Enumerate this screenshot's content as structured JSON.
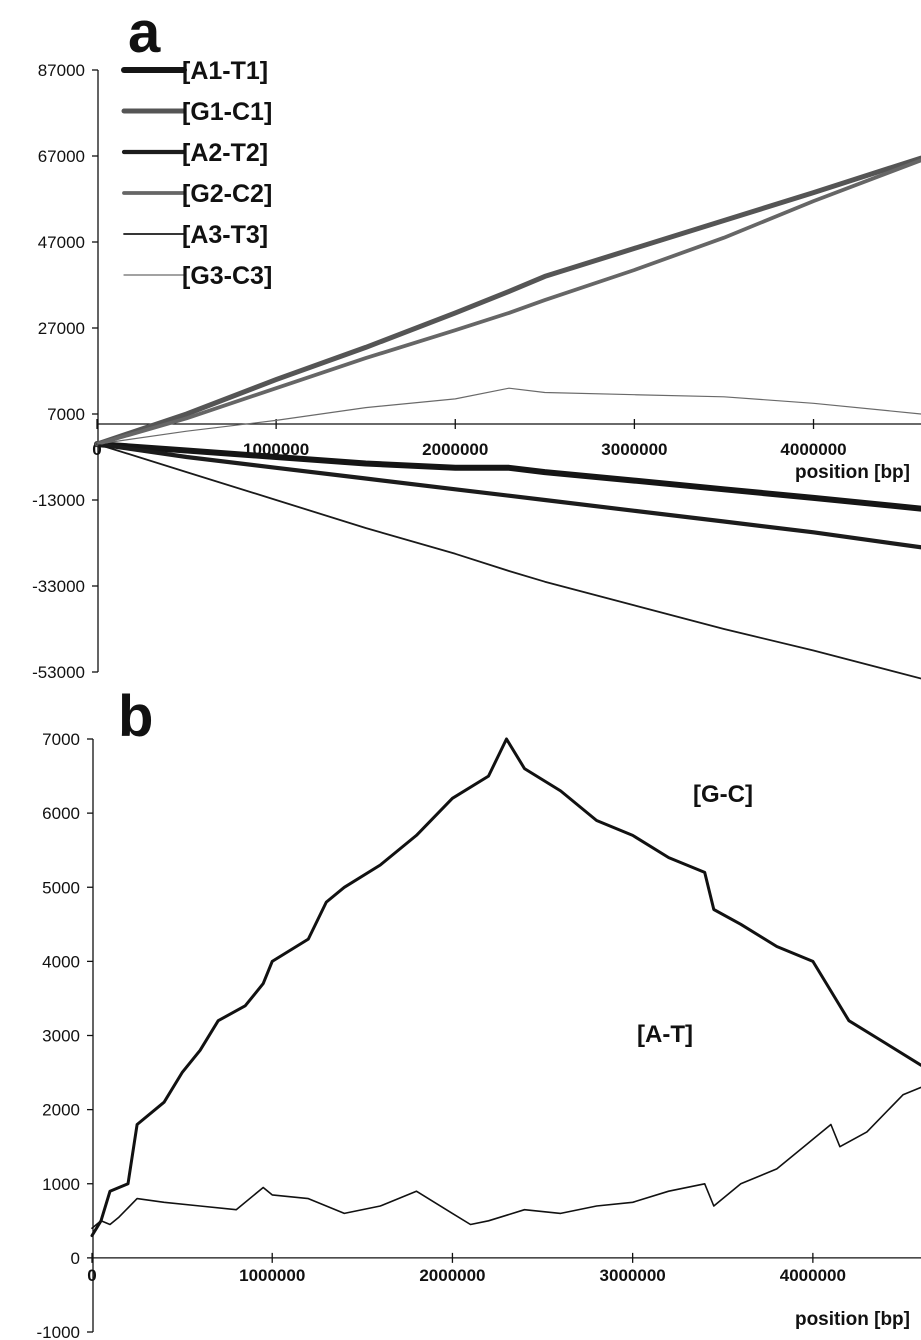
{
  "chart_data": [
    {
      "panel": "a",
      "type": "line",
      "xlabel": "position [bp]",
      "ylabel": "",
      "xlim": [
        0,
        4600000
      ],
      "ylim": [
        -53000,
        87000
      ],
      "xticks": [
        "0",
        "1000000",
        "2000000",
        "3000000",
        "4000000"
      ],
      "yticks": [
        "87000",
        "67000",
        "47000",
        "27000",
        "7000",
        "-13000",
        "-33000",
        "-53000"
      ],
      "legend": "top-left",
      "grid": false,
      "series": [
        {
          "name": "[A1-T1]",
          "color": "#151515",
          "x": [
            0,
            500000,
            1000000,
            1500000,
            2000000,
            2300000,
            2500000,
            3000000,
            3500000,
            4000000,
            4600000
          ],
          "y": [
            0,
            -1500,
            -3000,
            -4500,
            -5500,
            -5500,
            -6500,
            -8500,
            -10500,
            -12500,
            -15000
          ]
        },
        {
          "name": "[G1-C1]",
          "color": "#555555",
          "x": [
            0,
            500000,
            1000000,
            1500000,
            2000000,
            2300000,
            2500000,
            3000000,
            3500000,
            4000000,
            4600000
          ],
          "y": [
            0,
            7000,
            15000,
            22500,
            30500,
            35500,
            39000,
            45500,
            52000,
            58500,
            66500
          ]
        },
        {
          "name": "[A2-T2]",
          "color": "#1c1c1c",
          "x": [
            0,
            500000,
            1000000,
            1500000,
            2000000,
            2300000,
            2500000,
            3000000,
            3500000,
            4000000,
            4600000
          ],
          "y": [
            0,
            -3000,
            -5500,
            -8000,
            -10500,
            -12000,
            -13000,
            -15500,
            -18000,
            -20500,
            -24000
          ]
        },
        {
          "name": "[G2-C2]",
          "color": "#666666",
          "x": [
            0,
            500000,
            1000000,
            1500000,
            2000000,
            2300000,
            2500000,
            3000000,
            3500000,
            4000000,
            4600000
          ],
          "y": [
            0,
            6000,
            13000,
            20000,
            26500,
            30500,
            33500,
            40500,
            48000,
            56500,
            66000
          ]
        },
        {
          "name": "[A3-T3]",
          "color": "#1a1a1a",
          "x": [
            0,
            500000,
            1000000,
            1500000,
            2000000,
            2300000,
            2500000,
            3000000,
            3500000,
            4000000,
            4600000
          ],
          "y": [
            0,
            -6500,
            -13000,
            -19500,
            -25500,
            -29500,
            -32000,
            -37500,
            -43000,
            -48000,
            -54500
          ]
        },
        {
          "name": "[G3-C3]",
          "color": "#6a6a6a",
          "x": [
            0,
            500000,
            1000000,
            1500000,
            2000000,
            2300000,
            2500000,
            3000000,
            3500000,
            4000000,
            4600000
          ],
          "y": [
            0,
            3000,
            5500,
            8500,
            10500,
            13000,
            12000,
            11500,
            11000,
            9500,
            7000
          ]
        }
      ]
    },
    {
      "panel": "b",
      "type": "line",
      "xlabel": "position [bp]",
      "ylabel": "",
      "xlim": [
        0,
        4600000
      ],
      "ylim": [
        -1000,
        7000
      ],
      "xticks": [
        "0",
        "1000000",
        "2000000",
        "3000000",
        "4000000"
      ],
      "yticks": [
        "7000",
        "6000",
        "5000",
        "4000",
        "3000",
        "2000",
        "1000",
        "0",
        "-1000"
      ],
      "grid": false,
      "series": [
        {
          "name": "[G-C]",
          "color": "#111111",
          "x": [
            0,
            50000,
            100000,
            200000,
            250000,
            400000,
            500000,
            600000,
            700000,
            850000,
            950000,
            1000000,
            1200000,
            1300000,
            1400000,
            1600000,
            1800000,
            2000000,
            2200000,
            2300000,
            2400000,
            2600000,
            2800000,
            3000000,
            3200000,
            3400000,
            3450000,
            3600000,
            3800000,
            4000000,
            4100000,
            4200000,
            4400000,
            4600000
          ],
          "y": [
            300,
            500,
            900,
            1000,
            1800,
            2100,
            2500,
            2800,
            3200,
            3400,
            3700,
            4000,
            4300,
            4800,
            5000,
            5300,
            5700,
            6200,
            6500,
            7000,
            6600,
            6300,
            5900,
            5700,
            5400,
            5200,
            4700,
            4500,
            4200,
            4000,
            3600,
            3200,
            2900,
            2600
          ]
        },
        {
          "name": "[A-T]",
          "color": "#111111",
          "x": [
            0,
            50000,
            100000,
            150000,
            250000,
            400000,
            600000,
            800000,
            950000,
            1000000,
            1200000,
            1400000,
            1600000,
            1800000,
            2000000,
            2100000,
            2200000,
            2400000,
            2600000,
            2800000,
            3000000,
            3200000,
            3400000,
            3450000,
            3600000,
            3800000,
            4000000,
            4100000,
            4150000,
            4300000,
            4500000,
            4600000
          ],
          "y": [
            400,
            500,
            450,
            550,
            800,
            750,
            700,
            650,
            950,
            850,
            800,
            600,
            700,
            900,
            600,
            450,
            500,
            650,
            600,
            700,
            750,
            900,
            1000,
            700,
            1000,
            1200,
            1600,
            1800,
            1500,
            1700,
            2200,
            2300
          ]
        }
      ]
    }
  ]
}
